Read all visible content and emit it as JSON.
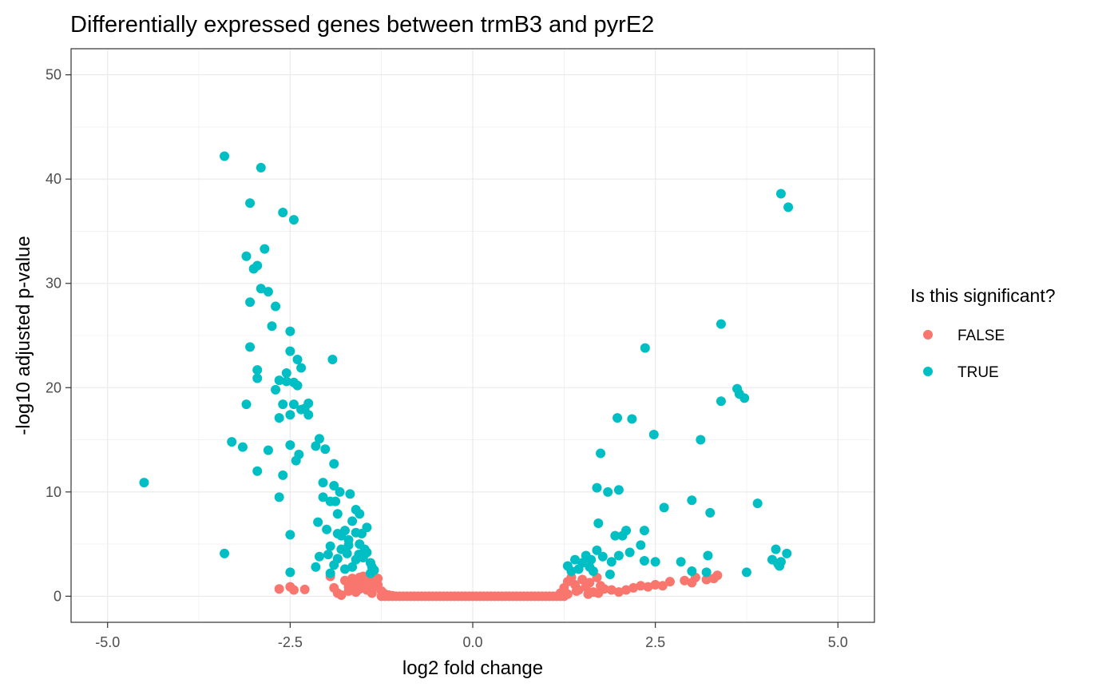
{
  "chart_data": {
    "type": "scatter",
    "title": "Differentially expressed genes between trmB3 and pyrE2",
    "xlabel": "log2 fold change",
    "ylabel": "-log10 adjusted p-value",
    "xlim": [
      -5.5,
      5.5
    ],
    "ylim": [
      -2.5,
      52.5
    ],
    "x_ticks": [
      -5.0,
      -2.5,
      0.0,
      2.5,
      5.0
    ],
    "x_tick_labels": [
      "-5.0",
      "-2.5",
      "0.0",
      "2.5",
      "5.0"
    ],
    "y_ticks": [
      0,
      10,
      20,
      30,
      40,
      50
    ],
    "y_tick_labels": [
      "0",
      "10",
      "20",
      "30",
      "40",
      "50"
    ],
    "grid": true,
    "legend": {
      "title": "Is this significant?",
      "position": "right",
      "entries": [
        {
          "label": "FALSE",
          "color": "#F8766D"
        },
        {
          "label": "TRUE",
          "color": "#00BFC4"
        }
      ]
    },
    "series": [
      {
        "name": "FALSE",
        "color": "#F8766D",
        "points": [
          [
            -2.65,
            0.7
          ],
          [
            -2.5,
            0.9
          ],
          [
            -2.45,
            0.6
          ],
          [
            -2.3,
            0.65
          ],
          [
            -1.95,
            1.9
          ],
          [
            -1.9,
            0.8
          ],
          [
            -1.85,
            0.3
          ],
          [
            -1.8,
            0.1
          ],
          [
            -1.75,
            1.5
          ],
          [
            -1.7,
            0.9
          ],
          [
            -1.65,
            1.7
          ],
          [
            -1.6,
            0.4
          ],
          [
            -1.55,
            1.8
          ],
          [
            -1.5,
            1.2
          ],
          [
            -1.45,
            0.6
          ],
          [
            -1.4,
            1.6
          ],
          [
            -1.35,
            0.9
          ],
          [
            -1.3,
            1.7
          ],
          [
            -1.25,
            0.5
          ],
          [
            -1.2,
            0.2
          ],
          [
            -1.15,
            0.1
          ],
          [
            -1.1,
            0.05
          ],
          [
            -1.6,
            1.0
          ],
          [
            -1.45,
            1.4
          ],
          [
            -1.55,
            0.7
          ],
          [
            -1.38,
            0.3
          ],
          [
            -1.7,
            0.5
          ],
          [
            -1.5,
            1.9
          ],
          [
            -1.3,
            1.1
          ],
          [
            -1.62,
            1.3
          ],
          [
            1.2,
            0.3
          ],
          [
            1.25,
            0.8
          ],
          [
            1.3,
            1.4
          ],
          [
            1.35,
            1.8
          ],
          [
            1.4,
            1.1
          ],
          [
            1.45,
            0.6
          ],
          [
            1.5,
            1.6
          ],
          [
            1.55,
            0.9
          ],
          [
            1.6,
            1.3
          ],
          [
            1.65,
            0.4
          ],
          [
            1.7,
            1.8
          ],
          [
            1.75,
            1.0
          ],
          [
            1.8,
            0.7
          ],
          [
            1.9,
            0.6
          ],
          [
            2.0,
            0.4
          ],
          [
            2.1,
            0.6
          ],
          [
            2.2,
            0.8
          ],
          [
            2.3,
            1.0
          ],
          [
            2.4,
            0.9
          ],
          [
            2.5,
            1.1
          ],
          [
            2.6,
            1.0
          ],
          [
            2.7,
            1.4
          ],
          [
            2.9,
            1.5
          ],
          [
            3.0,
            1.3
          ],
          [
            3.05,
            1.8
          ],
          [
            3.2,
            1.6
          ],
          [
            3.3,
            1.7
          ],
          [
            3.35,
            2.0
          ],
          [
            1.3,
            0.2
          ],
          [
            1.42,
            0.5
          ],
          [
            1.58,
            0.2
          ],
          [
            1.72,
            0.3
          ]
        ]
      },
      {
        "name": "TRUE",
        "color": "#00BFC4",
        "points": [
          [
            -4.5,
            10.9
          ],
          [
            -3.4,
            42.2
          ],
          [
            -3.4,
            4.1
          ],
          [
            -3.3,
            14.8
          ],
          [
            -3.15,
            14.3
          ],
          [
            -3.1,
            18.4
          ],
          [
            -3.1,
            32.6
          ],
          [
            -3.05,
            37.7
          ],
          [
            -3.05,
            28.2
          ],
          [
            -3.05,
            23.9
          ],
          [
            -3.0,
            31.4
          ],
          [
            -2.95,
            31.7
          ],
          [
            -2.95,
            21.7
          ],
          [
            -2.95,
            20.9
          ],
          [
            -2.95,
            12.0
          ],
          [
            -2.9,
            41.1
          ],
          [
            -2.9,
            29.5
          ],
          [
            -2.85,
            33.3
          ],
          [
            -2.8,
            29.2
          ],
          [
            -2.8,
            14.0
          ],
          [
            -2.75,
            25.9
          ],
          [
            -2.7,
            27.8
          ],
          [
            -2.7,
            19.8
          ],
          [
            -2.65,
            20.7
          ],
          [
            -2.65,
            17.1
          ],
          [
            -2.65,
            9.5
          ],
          [
            -2.6,
            36.8
          ],
          [
            -2.6,
            18.4
          ],
          [
            -2.6,
            11.6
          ],
          [
            -2.55,
            21.4
          ],
          [
            -2.55,
            20.6
          ],
          [
            -2.5,
            25.4
          ],
          [
            -2.5,
            23.5
          ],
          [
            -2.5,
            17.4
          ],
          [
            -2.5,
            14.5
          ],
          [
            -2.5,
            5.9
          ],
          [
            -2.5,
            2.3
          ],
          [
            -2.45,
            36.1
          ],
          [
            -2.45,
            18.4
          ],
          [
            -2.45,
            20.5
          ],
          [
            -2.42,
            13.0
          ],
          [
            -2.4,
            22.7
          ],
          [
            -2.4,
            20.2
          ],
          [
            -2.38,
            13.6
          ],
          [
            -2.35,
            21.9
          ],
          [
            -2.35,
            17.9
          ],
          [
            -2.3,
            18.0
          ],
          [
            -2.25,
            17.4
          ],
          [
            -2.25,
            18.5
          ],
          [
            -2.15,
            14.4
          ],
          [
            -2.12,
            7.1
          ],
          [
            -2.1,
            15.1
          ],
          [
            -2.05,
            10.9
          ],
          [
            -2.05,
            9.5
          ],
          [
            -2.02,
            14.1
          ],
          [
            -1.95,
            9.1
          ],
          [
            -1.92,
            22.7
          ],
          [
            -1.9,
            12.7
          ],
          [
            -1.9,
            10.6
          ],
          [
            -1.88,
            9.1
          ],
          [
            -1.85,
            7.9
          ],
          [
            -1.85,
            6.0
          ],
          [
            -1.82,
            10.0
          ],
          [
            -1.8,
            5.8
          ],
          [
            -1.75,
            6.3
          ],
          [
            -1.72,
            4.1
          ],
          [
            -1.7,
            5.4
          ],
          [
            -1.68,
            9.8
          ],
          [
            -1.65,
            7.2
          ],
          [
            -1.6,
            8.3
          ],
          [
            -1.6,
            6.1
          ],
          [
            -1.55,
            7.9
          ],
          [
            -1.55,
            5.0
          ],
          [
            -1.52,
            6.0
          ],
          [
            -1.5,
            3.7
          ],
          [
            -1.48,
            4.5
          ],
          [
            -1.45,
            6.6
          ],
          [
            -1.45,
            4.2
          ],
          [
            -1.4,
            3.2
          ],
          [
            -1.4,
            2.2
          ],
          [
            -1.38,
            2.8
          ],
          [
            -1.35,
            2.5
          ],
          [
            -1.65,
            2.8
          ],
          [
            -1.75,
            2.6
          ],
          [
            -1.95,
            2.2
          ],
          [
            -2.0,
            6.4
          ],
          [
            -1.98,
            4.0
          ],
          [
            -2.1,
            3.8
          ],
          [
            -2.15,
            2.8
          ],
          [
            -1.95,
            4.8
          ],
          [
            -1.85,
            3.6
          ],
          [
            -1.7,
            4.9
          ],
          [
            -1.6,
            3.5
          ],
          [
            -1.56,
            4.0
          ],
          [
            -1.8,
            4.5
          ],
          [
            -1.9,
            3.0
          ],
          [
            1.3,
            2.9
          ],
          [
            1.35,
            2.4
          ],
          [
            1.4,
            3.5
          ],
          [
            1.45,
            2.6
          ],
          [
            1.5,
            3.2
          ],
          [
            1.55,
            3.9
          ],
          [
            1.6,
            2.8
          ],
          [
            1.62,
            3.5
          ],
          [
            1.65,
            2.4
          ],
          [
            1.7,
            4.4
          ],
          [
            1.7,
            10.4
          ],
          [
            1.72,
            7.0
          ],
          [
            1.75,
            13.7
          ],
          [
            1.78,
            3.8
          ],
          [
            1.85,
            10.0
          ],
          [
            1.88,
            2.1
          ],
          [
            1.9,
            3.3
          ],
          [
            1.95,
            5.8
          ],
          [
            1.98,
            17.1
          ],
          [
            2.0,
            3.9
          ],
          [
            2.0,
            10.2
          ],
          [
            2.05,
            5.8
          ],
          [
            2.1,
            6.3
          ],
          [
            2.15,
            4.2
          ],
          [
            2.18,
            17.0
          ],
          [
            2.3,
            4.9
          ],
          [
            2.35,
            3.4
          ],
          [
            2.35,
            6.3
          ],
          [
            2.36,
            23.8
          ],
          [
            2.48,
            15.5
          ],
          [
            2.5,
            3.3
          ],
          [
            2.62,
            8.5
          ],
          [
            2.85,
            3.3
          ],
          [
            3.0,
            9.2
          ],
          [
            3.0,
            2.4
          ],
          [
            3.12,
            15.0
          ],
          [
            3.2,
            2.3
          ],
          [
            3.22,
            3.9
          ],
          [
            3.25,
            8.0
          ],
          [
            3.4,
            26.1
          ],
          [
            3.4,
            18.7
          ],
          [
            3.62,
            19.9
          ],
          [
            3.65,
            19.4
          ],
          [
            3.72,
            19.0
          ],
          [
            3.75,
            2.3
          ],
          [
            3.9,
            8.9
          ],
          [
            4.1,
            3.5
          ],
          [
            4.15,
            4.5
          ],
          [
            4.18,
            3.1
          ],
          [
            4.2,
            2.9
          ],
          [
            4.22,
            3.3
          ],
          [
            4.22,
            38.6
          ],
          [
            4.3,
            4.1
          ],
          [
            4.32,
            37.3
          ]
        ]
      }
    ],
    "zero_line_false": {
      "x_min": -1.25,
      "x_max": 1.25,
      "y": 0
    }
  }
}
